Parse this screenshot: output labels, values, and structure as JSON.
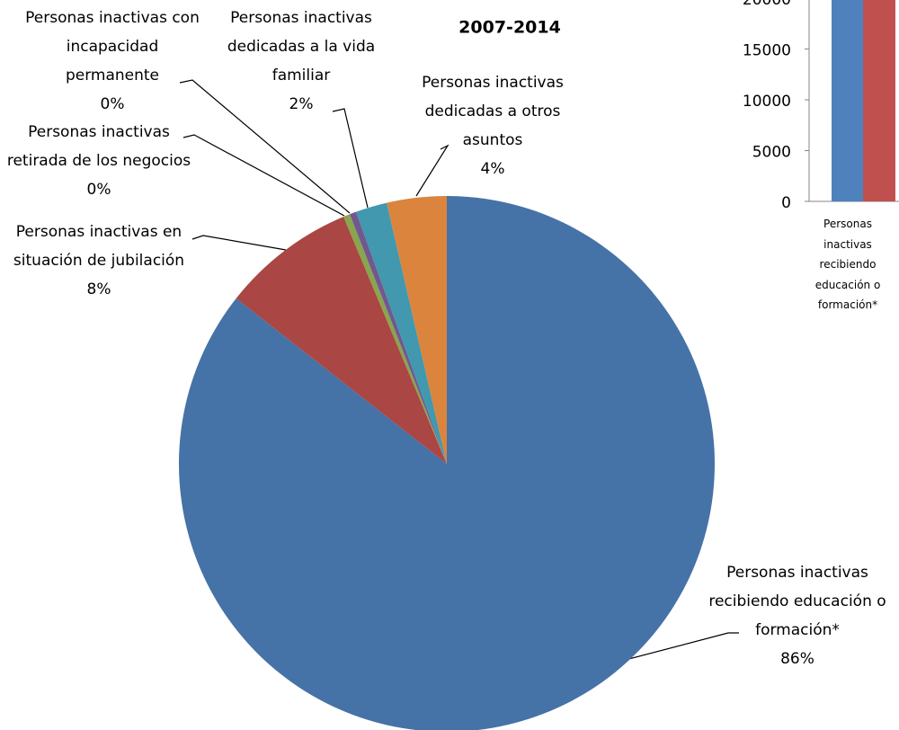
{
  "chart_data": [
    {
      "type": "pie",
      "title": "2007-2014",
      "categories": [
        "Personas inactivas recibiendo educación o formación*",
        "Personas inactivas en situación de jubilación",
        "Personas inactivas retirada de los negocios",
        "Personas inactivas con incapacidad permanente",
        "Personas inactivas dedicadas a la vida familiar",
        "Personas inactivas dedicadas a otros asuntos"
      ],
      "values": [
        85.6,
        8.1,
        0.4,
        0.4,
        1.9,
        3.6
      ],
      "value_labels": [
        "86%",
        "8%",
        "0%",
        "0%",
        "2%",
        "4%"
      ],
      "colors": [
        "#4572a7",
        "#aa4643",
        "#89a54e",
        "#71588f",
        "#4198af",
        "#db843d"
      ]
    },
    {
      "type": "bar",
      "categories": [
        "Personas inactivas recibiendo educación o formación*"
      ],
      "series": [
        {
          "color": "#4f81bd",
          "values": [
            24000
          ]
        },
        {
          "color": "#c0504d",
          "values": [
            23000
          ]
        }
      ],
      "ylim": [
        0,
        25000
      ],
      "yticks": [
        0,
        5000,
        10000,
        15000,
        20000
      ]
    }
  ]
}
